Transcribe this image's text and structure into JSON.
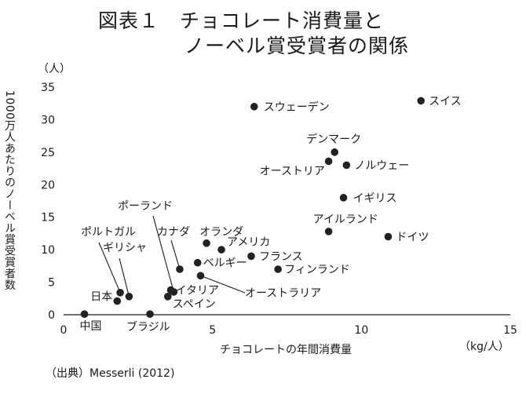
{
  "chart_data": {
    "type": "scatter",
    "title_line1": "図表１　チョコレート消費量と",
    "title_line2": "ノーベル賞受賞者の関係",
    "xlabel": "チョコレートの年間消費量",
    "x_unit": "（kg/人）",
    "ylabel": "1000万人あたりのノーベル賞受賞者数",
    "y_unit": "（人）",
    "xlim": [
      0,
      15
    ],
    "ylim": [
      0,
      35
    ],
    "x_ticks": [
      0,
      5,
      10,
      15
    ],
    "y_ticks": [
      0,
      5,
      10,
      15,
      20,
      25,
      30,
      35
    ],
    "grid": false,
    "points": [
      {
        "label": "中国",
        "x": 0.7,
        "y": 0.1
      },
      {
        "label": "ブラジル",
        "x": 2.9,
        "y": 0.1
      },
      {
        "label": "日本",
        "x": 1.8,
        "y": 2.1
      },
      {
        "label": "ポルトガル",
        "x": 1.9,
        "y": 3.4
      },
      {
        "label": "ギリシャ",
        "x": 2.2,
        "y": 2.8
      },
      {
        "label": "スペイン",
        "x": 3.5,
        "y": 2.8
      },
      {
        "label": "イタリア",
        "x": 3.6,
        "y": 3.8
      },
      {
        "label": "ポーランド",
        "x": 3.7,
        "y": 3.5
      },
      {
        "label": "カナダ",
        "x": 3.9,
        "y": 7.0
      },
      {
        "label": "ベルギー",
        "x": 4.5,
        "y": 8.0
      },
      {
        "label": "オーストラリア",
        "x": 4.6,
        "y": 6.0
      },
      {
        "label": "オランダ",
        "x": 4.8,
        "y": 11.0
      },
      {
        "label": "アメリカ",
        "x": 5.3,
        "y": 10.0
      },
      {
        "label": "フランス",
        "x": 6.3,
        "y": 9.0
      },
      {
        "label": "フィンランド",
        "x": 7.2,
        "y": 7.0
      },
      {
        "label": "スウェーデン",
        "x": 6.4,
        "y": 32.0
      },
      {
        "label": "デンマーク",
        "x": 9.1,
        "y": 25.0
      },
      {
        "label": "オーストリア",
        "x": 8.9,
        "y": 23.6
      },
      {
        "label": "ノルウェー",
        "x": 9.5,
        "y": 23.0
      },
      {
        "label": "イギリス",
        "x": 9.4,
        "y": 18.0
      },
      {
        "label": "アイルランド",
        "x": 8.9,
        "y": 12.8
      },
      {
        "label": "ドイツ",
        "x": 10.9,
        "y": 12.0
      },
      {
        "label": "スイス",
        "x": 12.0,
        "y": 32.9
      }
    ]
  },
  "source": "（出典）Messerli (2012)"
}
